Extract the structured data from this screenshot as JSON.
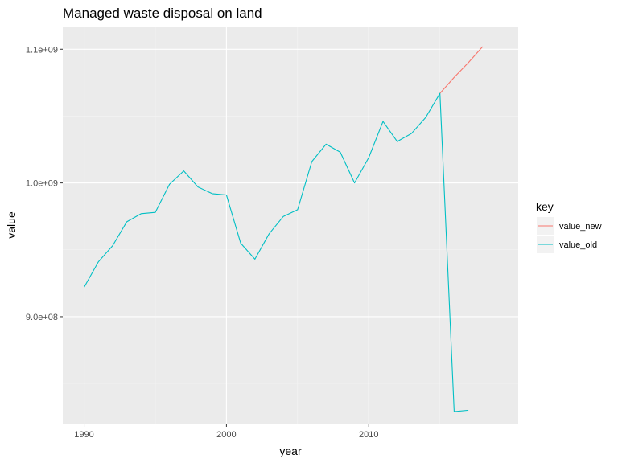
{
  "chart_data": {
    "type": "line",
    "title": "Managed waste disposal on land",
    "xlabel": "year",
    "ylabel": "value",
    "xlim": [
      1988.5,
      2020.5
    ],
    "ylim": [
      820000000,
      1117000000
    ],
    "x_major_ticks": [
      1990,
      2000,
      2010
    ],
    "x_tick_labels": [
      "1990",
      "2000",
      "2010"
    ],
    "x_minor_ticks": [
      1995,
      2005,
      2015
    ],
    "y_major_ticks": [
      900000000,
      1000000000,
      1100000000
    ],
    "y_tick_labels": [
      "9.0e+08",
      "1.0e+09",
      "1.1e+09"
    ],
    "y_minor_ticks": [
      850000000,
      950000000,
      1050000000
    ],
    "grid": true,
    "legend": {
      "title": "key",
      "position": "right",
      "entries": [
        {
          "label": "value_new",
          "color": "#F8766D"
        },
        {
          "label": "value_old",
          "color": "#00BFC4"
        }
      ]
    },
    "series": [
      {
        "name": "value_new",
        "color": "#F8766D",
        "x": [
          2015,
          2016,
          2017,
          2018
        ],
        "values": [
          1067000000,
          1079000000,
          1090000000,
          1102000000
        ]
      },
      {
        "name": "value_old",
        "color": "#00BFC4",
        "x": [
          1990,
          1991,
          1992,
          1993,
          1994,
          1995,
          1996,
          1997,
          1998,
          1999,
          2000,
          2001,
          2002,
          2003,
          2004,
          2005,
          2006,
          2007,
          2008,
          2009,
          2010,
          2011,
          2012,
          2013,
          2014,
          2015,
          2016,
          2017
        ],
        "values": [
          922000000,
          941000000,
          953000000,
          971000000,
          977000000,
          978000000,
          999000000,
          1009000000,
          997000000,
          992000000,
          991000000,
          955000000,
          943000000,
          962000000,
          975000000,
          980000000,
          1016000000,
          1029000000,
          1023000000,
          1000000000,
          1019000000,
          1046000000,
          1031000000,
          1037000000,
          1049000000,
          1067000000,
          829000000,
          830000000
        ]
      }
    ]
  },
  "colors": {
    "panel_background": "#EBEBEB",
    "grid_major": "#FFFFFF",
    "grid_minor": "#F5F5F5",
    "tick_mark": "#333333",
    "legend_key_background": "#F2F2F2"
  }
}
